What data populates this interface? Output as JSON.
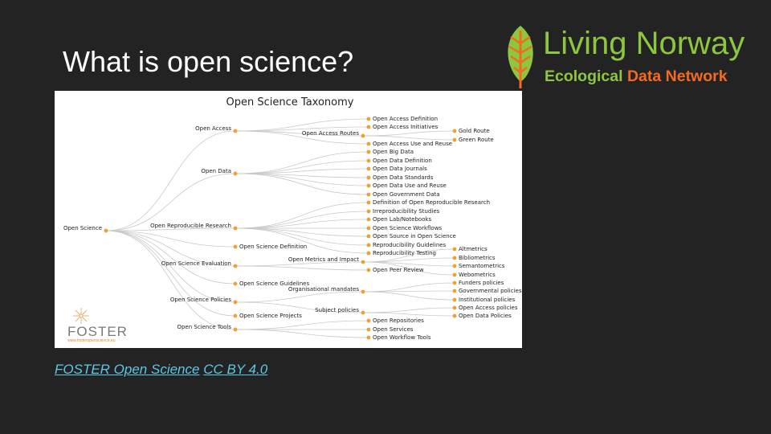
{
  "slide": {
    "title": "What is open science?"
  },
  "logo": {
    "title": "Living Norway",
    "subtitle_part1": "Ecological",
    "subtitle_part2": "Data Network",
    "green": "#8dc63f",
    "orange": "#f26b21",
    "icon": "leaf-icon"
  },
  "diagram": {
    "title": "Open Science Taxonomy",
    "node_color": "#f0a030",
    "edge_color": "#c8c8c8",
    "nodes": [
      {
        "id": "root",
        "label": "Open Science",
        "col": 0
      },
      {
        "id": "oa",
        "label": "Open Access",
        "col": 1,
        "parent": "root"
      },
      {
        "id": "od",
        "label": "Open Data",
        "col": 1,
        "parent": "root"
      },
      {
        "id": "orr",
        "label": "Open Reproducible Research",
        "col": 1,
        "parent": "root"
      },
      {
        "id": "osd",
        "label": "Open Science Definition",
        "col": 1,
        "parent": "root"
      },
      {
        "id": "ose",
        "label": "Open Science Evaluation",
        "col": 1,
        "parent": "root"
      },
      {
        "id": "osg",
        "label": "Open Science Guidelines",
        "col": 1,
        "parent": "root"
      },
      {
        "id": "osp",
        "label": "Open Science Policies",
        "col": 1,
        "parent": "root"
      },
      {
        "id": "ospr",
        "label": "Open Science Projects",
        "col": 1,
        "parent": "root"
      },
      {
        "id": "ost",
        "label": "Open Science Tools",
        "col": 1,
        "parent": "root"
      },
      {
        "id": "oar",
        "label": "Open Access Routes",
        "col": 2,
        "parent": "oa"
      },
      {
        "id": "omi",
        "label": "Open Metrics and Impact",
        "col": 2,
        "parent": "ose"
      },
      {
        "id": "orgm",
        "label": "Organisational mandates",
        "col": 2,
        "parent": "osp"
      },
      {
        "id": "subp",
        "label": "Subject policies",
        "col": 2,
        "parent": "osp"
      },
      {
        "id": "oadef",
        "label": "Open Access Definition",
        "col": 3,
        "parent": "oa"
      },
      {
        "id": "oainit",
        "label": "Open Access Initiatives",
        "col": 3,
        "parent": "oa"
      },
      {
        "id": "oause",
        "label": "Open Access Use and Reuse",
        "col": 3,
        "parent": "oa"
      },
      {
        "id": "obd",
        "label": "Open Big Data",
        "col": 3,
        "parent": "od"
      },
      {
        "id": "oddef",
        "label": "Open Data Definition",
        "col": 3,
        "parent": "od"
      },
      {
        "id": "odj",
        "label": "Open Data Journals",
        "col": 3,
        "parent": "od"
      },
      {
        "id": "ods",
        "label": "Open Data Standards",
        "col": 3,
        "parent": "od"
      },
      {
        "id": "oduse",
        "label": "Open Data Use and Reuse",
        "col": 3,
        "parent": "od"
      },
      {
        "id": "ogd",
        "label": "Open Government Data",
        "col": 3,
        "parent": "od"
      },
      {
        "id": "dorr",
        "label": "Definition of Open Reproducible Research",
        "col": 3,
        "parent": "orr"
      },
      {
        "id": "irr",
        "label": "Irreproducibility Studies",
        "col": 3,
        "parent": "orr"
      },
      {
        "id": "oln",
        "label": "Open Lab/Notebooks",
        "col": 3,
        "parent": "orr"
      },
      {
        "id": "osw",
        "label": "Open Science Workflows",
        "col": 3,
        "parent": "orr"
      },
      {
        "id": "osos",
        "label": "Open Source in Open Science",
        "col": 3,
        "parent": "orr"
      },
      {
        "id": "rg",
        "label": "Reproducibility Guidelines",
        "col": 3,
        "parent": "orr"
      },
      {
        "id": "rt",
        "label": "Reproducibility Testing",
        "col": 3,
        "parent": "orr"
      },
      {
        "id": "opr",
        "label": "Open Peer Review",
        "col": 3,
        "parent": "ose"
      },
      {
        "id": "orep",
        "label": "Open Repositories",
        "col": 3,
        "parent": "ost"
      },
      {
        "id": "oserv",
        "label": "Open Services",
        "col": 3,
        "parent": "ost"
      },
      {
        "id": "owt",
        "label": "Open Workflow Tools",
        "col": 3,
        "parent": "ost"
      },
      {
        "id": "gold",
        "label": "Gold Route",
        "col": 4,
        "parent": "oar"
      },
      {
        "id": "green",
        "label": "Green Route",
        "col": 4,
        "parent": "oar"
      },
      {
        "id": "alt",
        "label": "Altmetrics",
        "col": 4,
        "parent": "omi"
      },
      {
        "id": "bib",
        "label": "Bibliometrics",
        "col": 4,
        "parent": "omi"
      },
      {
        "id": "sem",
        "label": "Semantometrics",
        "col": 4,
        "parent": "omi"
      },
      {
        "id": "web",
        "label": "Webometrics",
        "col": 4,
        "parent": "omi"
      },
      {
        "id": "fund",
        "label": "Funders policies",
        "col": 4,
        "parent": "orgm"
      },
      {
        "id": "gov",
        "label": "Governmental policies",
        "col": 4,
        "parent": "orgm"
      },
      {
        "id": "inst",
        "label": "Institutional policies",
        "col": 4,
        "parent": "orgm"
      },
      {
        "id": "oap",
        "label": "Open Access policies",
        "col": 4,
        "parent": "subp"
      },
      {
        "id": "odp",
        "label": "Open Data Policies",
        "col": 4,
        "parent": "subp"
      }
    ],
    "foster_logo_text": "FOSTER",
    "foster_logo_url": "www.fosteropenscience.eu"
  },
  "credit": {
    "link1": "FOSTER Open Science",
    "link2": "CC BY 4.0"
  }
}
